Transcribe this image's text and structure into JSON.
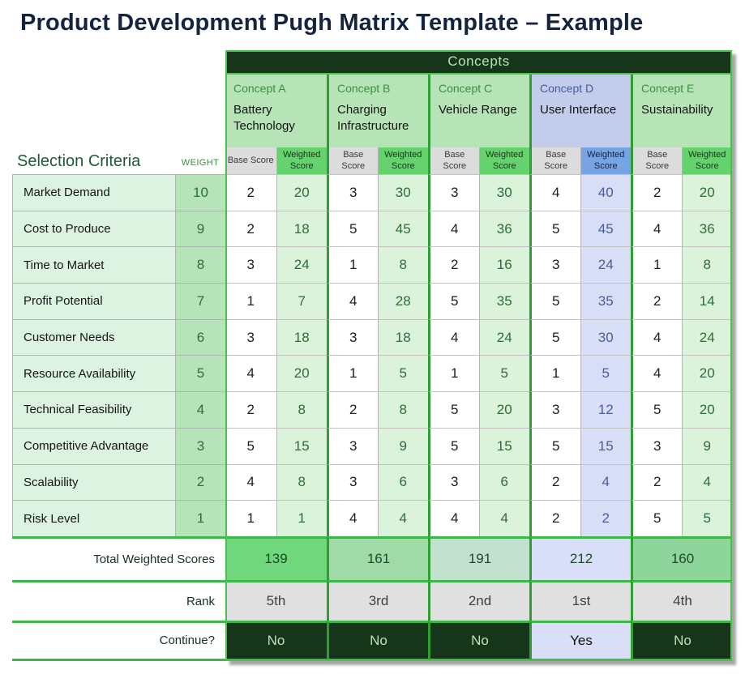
{
  "title": "Product Development Pugh Matrix Template – Example",
  "table": {
    "concepts_title": "Concepts",
    "selection_criteria_label": "Selection Criteria",
    "weight_label": "WEIGHT",
    "base_score_label": "Base Score",
    "weighted_score_label": "Weighted Score",
    "concepts": [
      {
        "id": "A",
        "label": "Concept A",
        "name": "Battery Technology",
        "theme": "green"
      },
      {
        "id": "B",
        "label": "Concept B",
        "name": "Charging Infrastructure",
        "theme": "green"
      },
      {
        "id": "C",
        "label": "Concept C",
        "name": "Vehicle Range",
        "theme": "green"
      },
      {
        "id": "D",
        "label": "Concept D",
        "name": "User Interface",
        "theme": "blue"
      },
      {
        "id": "E",
        "label": "Concept E",
        "name": "Sustainability",
        "theme": "green"
      }
    ],
    "criteria": [
      {
        "label": "Market Demand",
        "weight": 10,
        "scores": [
          {
            "base": 2,
            "weighted": 20
          },
          {
            "base": 3,
            "weighted": 30
          },
          {
            "base": 3,
            "weighted": 30
          },
          {
            "base": 4,
            "weighted": 40
          },
          {
            "base": 2,
            "weighted": 20
          }
        ]
      },
      {
        "label": "Cost to Produce",
        "weight": 9,
        "scores": [
          {
            "base": 2,
            "weighted": 18
          },
          {
            "base": 5,
            "weighted": 45
          },
          {
            "base": 4,
            "weighted": 36
          },
          {
            "base": 5,
            "weighted": 45
          },
          {
            "base": 4,
            "weighted": 36
          }
        ]
      },
      {
        "label": "Time to Market",
        "weight": 8,
        "scores": [
          {
            "base": 3,
            "weighted": 24
          },
          {
            "base": 1,
            "weighted": 8
          },
          {
            "base": 2,
            "weighted": 16
          },
          {
            "base": 3,
            "weighted": 24
          },
          {
            "base": 1,
            "weighted": 8
          }
        ]
      },
      {
        "label": "Profit Potential",
        "weight": 7,
        "scores": [
          {
            "base": 1,
            "weighted": 7
          },
          {
            "base": 4,
            "weighted": 28
          },
          {
            "base": 5,
            "weighted": 35
          },
          {
            "base": 5,
            "weighted": 35
          },
          {
            "base": 2,
            "weighted": 14
          }
        ]
      },
      {
        "label": "Customer Needs",
        "weight": 6,
        "scores": [
          {
            "base": 3,
            "weighted": 18
          },
          {
            "base": 3,
            "weighted": 18
          },
          {
            "base": 4,
            "weighted": 24
          },
          {
            "base": 5,
            "weighted": 30
          },
          {
            "base": 4,
            "weighted": 24
          }
        ]
      },
      {
        "label": "Resource Availability",
        "weight": 5,
        "scores": [
          {
            "base": 4,
            "weighted": 20
          },
          {
            "base": 1,
            "weighted": 5
          },
          {
            "base": 1,
            "weighted": 5
          },
          {
            "base": 1,
            "weighted": 5
          },
          {
            "base": 4,
            "weighted": 20
          }
        ]
      },
      {
        "label": "Technical Feasibility",
        "weight": 4,
        "scores": [
          {
            "base": 2,
            "weighted": 8
          },
          {
            "base": 2,
            "weighted": 8
          },
          {
            "base": 5,
            "weighted": 20
          },
          {
            "base": 3,
            "weighted": 12
          },
          {
            "base": 5,
            "weighted": 20
          }
        ]
      },
      {
        "label": "Competitive Advantage",
        "weight": 3,
        "scores": [
          {
            "base": 5,
            "weighted": 15
          },
          {
            "base": 3,
            "weighted": 9
          },
          {
            "base": 5,
            "weighted": 15
          },
          {
            "base": 5,
            "weighted": 15
          },
          {
            "base": 3,
            "weighted": 9
          }
        ]
      },
      {
        "label": "Scalability",
        "weight": 2,
        "scores": [
          {
            "base": 4,
            "weighted": 8
          },
          {
            "base": 3,
            "weighted": 6
          },
          {
            "base": 3,
            "weighted": 6
          },
          {
            "base": 2,
            "weighted": 4
          },
          {
            "base": 2,
            "weighted": 4
          }
        ]
      },
      {
        "label": "Risk Level",
        "weight": 1,
        "scores": [
          {
            "base": 1,
            "weighted": 1
          },
          {
            "base": 4,
            "weighted": 4
          },
          {
            "base": 4,
            "weighted": 4
          },
          {
            "base": 2,
            "weighted": 2
          },
          {
            "base": 5,
            "weighted": 5
          }
        ]
      }
    ],
    "totals": {
      "label": "Total Weighted Scores",
      "values": [
        139,
        161,
        191,
        212,
        160
      ]
    },
    "rank": {
      "label": "Rank",
      "values": [
        "5th",
        "3rd",
        "2nd",
        "1st",
        "4th"
      ]
    },
    "continue": {
      "label": "Continue?",
      "values": [
        "No",
        "No",
        "No",
        "Yes",
        "No"
      ]
    }
  },
  "colors": {
    "title_text": "#14243e",
    "outer_border_green": "#4dbf4d",
    "concept_separator_green": "#2f9e33",
    "band_bg": "#17351a",
    "band_text": "#b5e6b5",
    "concept_head_green": "#b7e4b7",
    "concept_head_blue": "#c3cdeb",
    "concept_label_green": "#38913c",
    "concept_label_blue": "#4659a4",
    "base_head_bg": "#dcdcdc",
    "weighted_head_green": "#66d26e",
    "weighted_head_blue": "#76a4e4",
    "weighted_head_text_green": "#17361b",
    "weighted_head_text_blue": "#16233f",
    "weighted_cell_green": "#dbf2db",
    "weighted_cell_blue": "#d7def6",
    "weighted_text_green": "#2c6e35",
    "weighted_text_blue": "#4a5c9e",
    "criteria_bg": "#ddf3e1",
    "weight_col_bg": "#b7e3b9",
    "summary_line_green": "#3cb54a",
    "total_bgs": [
      "#70d77d",
      "#9fdaa7",
      "#c2e2cf",
      "#d9dff8",
      "#8ed59b"
    ],
    "total_text": "#1c4a28",
    "rank_bg": "#e0e0e0",
    "rank_text": "#3f3f3f",
    "continue_no_bg": "#17351a",
    "continue_no_text": "#b5e6b5",
    "continue_yes_bg": "#d9dff8",
    "continue_yes_text": "#111111"
  }
}
